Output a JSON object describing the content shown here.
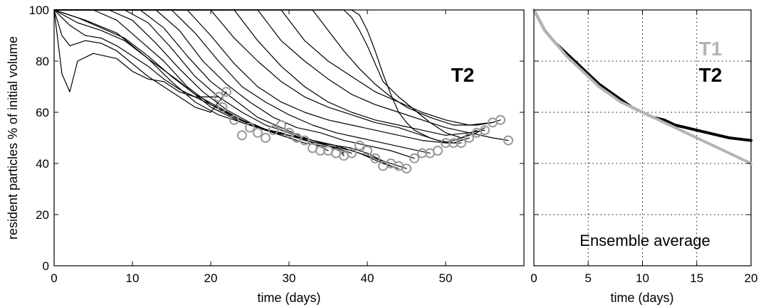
{
  "chart_data": [
    {
      "type": "line",
      "panel": "left",
      "xlabel": "time (days)",
      "ylabel": "resident particles % of initial volume",
      "xlim": [
        0,
        60
      ],
      "ylim": [
        0,
        100
      ],
      "xticks": [
        0,
        10,
        20,
        30,
        40,
        50
      ],
      "yticks": [
        0,
        20,
        40,
        60,
        80,
        100
      ],
      "grid": false,
      "label": "T2",
      "series": [
        {
          "x": [
            0,
            1,
            2,
            3,
            5,
            8,
            10,
            12,
            14,
            16,
            18,
            20,
            21
          ],
          "y": [
            100,
            75,
            68,
            80,
            83,
            81,
            76,
            73,
            72,
            68,
            66,
            66,
            66
          ]
        },
        {
          "x": [
            0,
            1,
            2,
            4,
            6,
            8,
            10,
            12,
            14,
            16,
            18,
            20,
            22
          ],
          "y": [
            100,
            90,
            86,
            88,
            87,
            84,
            79,
            74,
            70,
            66,
            62,
            60,
            68
          ]
        },
        {
          "x": [
            0,
            2,
            4,
            6,
            8,
            10,
            12,
            14,
            16,
            18,
            20,
            22,
            24,
            26,
            28,
            30,
            32,
            34,
            36,
            38,
            40,
            42,
            44,
            45
          ],
          "y": [
            100,
            94,
            90,
            89,
            86,
            82,
            78,
            73,
            69,
            66,
            63,
            60,
            57,
            54,
            52,
            51,
            50,
            48,
            47,
            46,
            44,
            41,
            39,
            38
          ]
        },
        {
          "x": [
            0,
            3,
            6,
            9,
            12,
            15,
            18,
            21,
            24,
            27,
            30,
            33,
            36,
            37
          ],
          "y": [
            100,
            95,
            92,
            88,
            81,
            72,
            64,
            59,
            56,
            53,
            51,
            49,
            47,
            43
          ]
        },
        {
          "x": [
            0,
            3,
            6,
            9,
            12,
            15,
            18,
            21,
            24,
            27,
            30,
            33,
            36,
            39,
            42,
            44
          ],
          "y": [
            100,
            97,
            93,
            89,
            82,
            74,
            67,
            62,
            57,
            53,
            51,
            49,
            47,
            44,
            40,
            38
          ]
        },
        {
          "x": [
            0,
            4,
            8,
            12,
            16,
            20,
            24,
            28,
            32,
            36,
            38
          ],
          "y": [
            100,
            96,
            91,
            81,
            72,
            62,
            56,
            52,
            48,
            46,
            44
          ]
        },
        {
          "x": [
            0,
            5,
            8,
            11,
            14,
            17,
            20,
            23,
            26,
            29,
            32,
            35,
            38,
            41,
            43
          ],
          "y": [
            100,
            100,
            96,
            88,
            80,
            70,
            63,
            58,
            54,
            52,
            49,
            47,
            45,
            42,
            39
          ]
        },
        {
          "x": [
            0,
            7,
            10,
            13,
            16,
            19,
            22,
            25,
            28,
            31
          ],
          "y": [
            100,
            100,
            96,
            87,
            77,
            68,
            61,
            56,
            52,
            49
          ]
        },
        {
          "x": [
            0,
            9,
            12,
            15,
            18,
            21,
            24,
            27,
            30,
            33,
            35
          ],
          "y": [
            100,
            100,
            95,
            85,
            74,
            66,
            60,
            55,
            52,
            48,
            45
          ]
        },
        {
          "x": [
            0,
            11,
            14,
            17,
            20,
            23,
            26,
            29,
            32,
            35,
            37
          ],
          "y": [
            100,
            100,
            93,
            82,
            72,
            65,
            58,
            54,
            50,
            47,
            44
          ]
        },
        {
          "x": [
            0,
            13,
            16,
            19,
            22,
            25,
            28,
            31,
            34,
            37,
            40,
            43,
            46
          ],
          "y": [
            100,
            100,
            92,
            80,
            71,
            64,
            58,
            54,
            52,
            49,
            47,
            45,
            42
          ]
        },
        {
          "x": [
            0,
            15,
            18,
            21,
            24,
            27,
            30,
            33,
            36,
            39,
            42,
            45,
            48
          ],
          "y": [
            100,
            100,
            91,
            80,
            70,
            64,
            59,
            55,
            52,
            50,
            48,
            46,
            44
          ]
        },
        {
          "x": [
            0,
            17,
            20,
            23,
            26,
            29,
            32,
            35,
            38,
            41,
            44,
            47,
            50,
            52
          ],
          "y": [
            100,
            100,
            90,
            79,
            70,
            64,
            60,
            57,
            55,
            53,
            51,
            49,
            48,
            48
          ]
        },
        {
          "x": [
            0,
            20,
            23,
            26,
            29,
            32,
            35,
            38,
            41,
            44,
            47,
            49,
            51,
            53
          ],
          "y": [
            100,
            100,
            89,
            80,
            72,
            66,
            62,
            59,
            56,
            54,
            51,
            49,
            48,
            50
          ]
        },
        {
          "x": [
            0,
            23,
            26,
            29,
            32,
            35,
            38,
            41,
            44,
            47,
            50,
            53,
            55
          ],
          "y": [
            100,
            100,
            88,
            78,
            70,
            64,
            60,
            57,
            55,
            53,
            51,
            52,
            53
          ]
        },
        {
          "x": [
            0,
            26,
            29,
            32,
            35,
            38,
            41,
            44,
            47,
            50,
            53,
            56,
            58
          ],
          "y": [
            100,
            100,
            88,
            80,
            73,
            67,
            63,
            60,
            57,
            54,
            52,
            50,
            49
          ]
        },
        {
          "x": [
            0,
            29,
            32,
            35,
            38,
            41,
            44,
            47,
            50,
            53,
            56,
            57
          ],
          "y": [
            100,
            100,
            88,
            80,
            74,
            68,
            64,
            60,
            57,
            55,
            56,
            57
          ]
        },
        {
          "x": [
            0,
            33,
            35,
            37,
            39,
            41,
            43,
            45,
            48,
            51,
            54,
            56
          ],
          "y": [
            100,
            100,
            92,
            84,
            77,
            71,
            66,
            62,
            58,
            55,
            55,
            56
          ]
        },
        {
          "x": [
            0,
            37,
            38,
            39,
            40,
            41,
            42,
            44,
            46,
            48,
            50,
            52,
            54,
            55
          ],
          "y": [
            100,
            100,
            97,
            92,
            86,
            79,
            72,
            66,
            61,
            56,
            52,
            50,
            52,
            54
          ]
        },
        {
          "x": [
            0,
            38,
            39,
            40,
            41,
            42,
            43,
            44,
            45,
            46,
            48,
            50,
            52,
            54
          ],
          "y": [
            100,
            100,
            98,
            92,
            84,
            75,
            67,
            60,
            56,
            53,
            50,
            48,
            50,
            53
          ]
        }
      ],
      "markers": [
        {
          "x": 21,
          "y": 66
        },
        {
          "x": 22,
          "y": 68
        },
        {
          "x": 21.5,
          "y": 62
        },
        {
          "x": 23,
          "y": 57
        },
        {
          "x": 24,
          "y": 51
        },
        {
          "x": 25,
          "y": 54
        },
        {
          "x": 26,
          "y": 52
        },
        {
          "x": 27,
          "y": 50
        },
        {
          "x": 28,
          "y": 53
        },
        {
          "x": 29,
          "y": 55
        },
        {
          "x": 30,
          "y": 52
        },
        {
          "x": 31,
          "y": 50
        },
        {
          "x": 32,
          "y": 49
        },
        {
          "x": 33,
          "y": 46
        },
        {
          "x": 34,
          "y": 45
        },
        {
          "x": 35,
          "y": 45
        },
        {
          "x": 36,
          "y": 44
        },
        {
          "x": 37,
          "y": 43
        },
        {
          "x": 38,
          "y": 44
        },
        {
          "x": 39,
          "y": 47
        },
        {
          "x": 40,
          "y": 45
        },
        {
          "x": 41,
          "y": 42
        },
        {
          "x": 42,
          "y": 39
        },
        {
          "x": 43,
          "y": 40
        },
        {
          "x": 44,
          "y": 39
        },
        {
          "x": 45,
          "y": 38
        },
        {
          "x": 46,
          "y": 42
        },
        {
          "x": 47,
          "y": 44
        },
        {
          "x": 48,
          "y": 44
        },
        {
          "x": 49,
          "y": 45
        },
        {
          "x": 50,
          "y": 48
        },
        {
          "x": 51,
          "y": 48
        },
        {
          "x": 52,
          "y": 48
        },
        {
          "x": 53,
          "y": 50
        },
        {
          "x": 54,
          "y": 52
        },
        {
          "x": 55,
          "y": 53
        },
        {
          "x": 56,
          "y": 56
        },
        {
          "x": 57,
          "y": 57
        },
        {
          "x": 58,
          "y": 49
        }
      ],
      "colors": {
        "lines": "#000000",
        "markers": "#999999"
      }
    },
    {
      "type": "line",
      "panel": "right",
      "xlabel": "time (days)",
      "ylabel": "",
      "xlim": [
        0,
        20
      ],
      "ylim": [
        0,
        100
      ],
      "xticks": [
        0,
        5,
        10,
        15,
        20
      ],
      "yticks": [
        0,
        20,
        40,
        60,
        80,
        100
      ],
      "grid": true,
      "annotation": "Ensemble average",
      "series": [
        {
          "name": "T2",
          "color": "#000000",
          "x": [
            0,
            1,
            2,
            3,
            4,
            5,
            6,
            7,
            8,
            9,
            10,
            11,
            12,
            13,
            14,
            15,
            16,
            17,
            18,
            19,
            20
          ],
          "y": [
            100,
            92,
            87,
            83,
            79,
            75,
            71,
            68,
            65,
            62,
            60,
            58,
            57,
            55,
            54,
            53,
            52,
            51,
            50,
            49.5,
            49
          ]
        },
        {
          "name": "T1",
          "color": "#b4b4b4",
          "x": [
            0,
            1,
            2,
            3,
            4,
            5,
            6,
            7,
            8,
            9,
            10,
            11,
            12,
            13,
            14,
            15,
            16,
            17,
            18,
            19,
            20
          ],
          "y": [
            100,
            92,
            87,
            82,
            78,
            74,
            70,
            67,
            64,
            62,
            60,
            58,
            56,
            54,
            52,
            50,
            48,
            46,
            44,
            42,
            40
          ]
        }
      ]
    }
  ]
}
